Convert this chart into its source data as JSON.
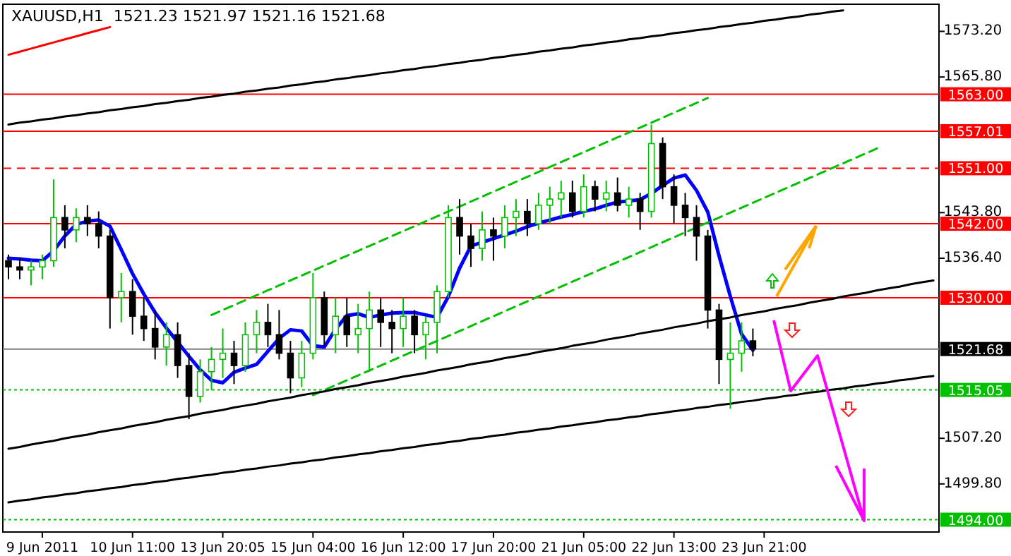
{
  "chart_data": {
    "type": "candlestick",
    "title": "XAUUSD,H1  1521.23 1521.97 1521.16 1521.68",
    "categories": [
      null,
      null,
      null,
      "9 Jun 2011",
      null,
      null,
      null,
      null,
      null,
      null,
      null,
      "10 Jun 11:00",
      null,
      null,
      null,
      null,
      null,
      null,
      null,
      "13 Jun 20:05",
      null,
      null,
      null,
      null,
      null,
      null,
      null,
      "15 Jun 04:00",
      null,
      null,
      null,
      null,
      null,
      null,
      null,
      "16 Jun 12:00",
      null,
      null,
      null,
      null,
      null,
      null,
      null,
      "17 Jun 20:00",
      null,
      null,
      null,
      null,
      null,
      null,
      null,
      "21 Jun 05:00",
      null,
      null,
      null,
      null,
      null,
      null,
      null,
      "22 Jun 13:00",
      null,
      null,
      null,
      null,
      null,
      null,
      null,
      "23 Jun 21:00",
      null,
      null,
      null,
      null,
      null,
      null,
      null,
      null,
      null,
      null,
      null,
      null,
      null,
      null,
      null
    ],
    "ohlc": [
      [
        1536,
        1537,
        1533,
        1535
      ],
      [
        1535,
        1536.5,
        1533,
        1534.5
      ],
      [
        1534.5,
        1536,
        1532,
        1535
      ],
      [
        1535,
        1537,
        1533,
        1536
      ],
      [
        1536,
        1549.2,
        1535,
        1543
      ],
      [
        1543,
        1545,
        1538,
        1541
      ],
      [
        1541,
        1544.5,
        1539,
        1543
      ],
      [
        1543,
        1545,
        1540,
        1542
      ],
      [
        1542,
        1544,
        1538,
        1540
      ],
      [
        1540,
        1541,
        1525,
        1530
      ],
      [
        1530,
        1534,
        1526,
        1531
      ],
      [
        1531,
        1533,
        1524,
        1527
      ],
      [
        1527,
        1530,
        1523,
        1525
      ],
      [
        1525,
        1528,
        1520,
        1522
      ],
      [
        1522,
        1526,
        1519,
        1524
      ],
      [
        1524,
        1526,
        1517,
        1519
      ],
      [
        1519,
        1521,
        1510.3,
        1514
      ],
      [
        1514,
        1520,
        1513,
        1518
      ],
      [
        1518,
        1522,
        1515,
        1520
      ],
      [
        1520,
        1525,
        1517,
        1521
      ],
      [
        1521,
        1523,
        1516,
        1519
      ],
      [
        1519,
        1526,
        1518,
        1524
      ],
      [
        1524,
        1528,
        1521,
        1526
      ],
      [
        1526,
        1529,
        1522,
        1524
      ],
      [
        1524,
        1528,
        1520,
        1521
      ],
      [
        1521,
        1523,
        1514.5,
        1517
      ],
      [
        1517,
        1523,
        1515.5,
        1521
      ],
      [
        1521,
        1534,
        1520,
        1530
      ],
      [
        1530,
        1531,
        1522,
        1524
      ],
      [
        1524,
        1530,
        1521,
        1527
      ],
      [
        1527,
        1530,
        1522,
        1524
      ],
      [
        1524,
        1529,
        1521,
        1525
      ],
      [
        1525,
        1531,
        1518,
        1528
      ],
      [
        1528,
        1530,
        1522,
        1526
      ],
      [
        1526,
        1528,
        1521,
        1525
      ],
      [
        1525,
        1530,
        1522,
        1527
      ],
      [
        1527,
        1528,
        1521,
        1524
      ],
      [
        1524,
        1527,
        1520,
        1526
      ],
      [
        1526,
        1532,
        1521,
        1531
      ],
      [
        1531,
        1545,
        1530,
        1543
      ],
      [
        1543,
        1546,
        1537,
        1540
      ],
      [
        1540,
        1542,
        1535,
        1538
      ],
      [
        1538,
        1544,
        1536,
        1541
      ],
      [
        1541,
        1543,
        1536,
        1540
      ],
      [
        1540,
        1545,
        1538,
        1543
      ],
      [
        1543,
        1546,
        1540,
        1544
      ],
      [
        1544,
        1546,
        1540,
        1542
      ],
      [
        1542,
        1547,
        1541,
        1545
      ],
      [
        1545,
        1548,
        1542,
        1546
      ],
      [
        1546,
        1549,
        1543,
        1547
      ],
      [
        1547,
        1549,
        1543,
        1544
      ],
      [
        1544,
        1550,
        1543,
        1548
      ],
      [
        1548,
        1549,
        1544,
        1546
      ],
      [
        1546,
        1549,
        1544,
        1547
      ],
      [
        1547,
        1549.5,
        1544,
        1545
      ],
      [
        1545,
        1548,
        1543,
        1546
      ],
      [
        1546,
        1547,
        1541,
        1544
      ],
      [
        1544,
        1558.1,
        1543,
        1555
      ],
      [
        1555,
        1556,
        1546,
        1548
      ],
      [
        1548,
        1550,
        1542,
        1545
      ],
      [
        1545,
        1547,
        1540,
        1543
      ],
      [
        1543,
        1545,
        1536,
        1540
      ],
      [
        1540,
        1541,
        1525,
        1528
      ],
      [
        1528,
        1529,
        1516,
        1520
      ],
      [
        1520,
        1526,
        1512,
        1521
      ],
      [
        1521,
        1526,
        1518,
        1523
      ],
      [
        1523,
        1525,
        1520.5,
        1521.68
      ],
      null,
      null,
      null,
      null,
      null,
      null,
      null,
      null,
      null,
      null,
      null,
      null,
      null,
      null,
      null,
      null
    ],
    "series": [
      {
        "type": "line",
        "color": "#0000ff",
        "values": [
          1536.4,
          1536.3,
          1536.1,
          1536,
          1537.6,
          1540,
          1541.9,
          1542.4,
          1542.6,
          1541.6,
          1537.8,
          1533.9,
          1530.6,
          1527.6,
          1525.1,
          1522.8,
          1520.5,
          1518.3,
          1516.6,
          1516.2,
          1517.9,
          1518.6,
          1519.2,
          1521.3,
          1523.4,
          1524.8,
          1524.6,
          1522.2,
          1522,
          1524.9,
          1527.1,
          1527.4,
          1526.8,
          1527.2,
          1527.5,
          1527.6,
          1527.6,
          1527.2,
          1526.8,
          1530.2,
          1534.8,
          1538.4,
          1539,
          1539.6,
          1540.2,
          1540.8,
          1541.5,
          1542.1,
          1542.6,
          1543.1,
          1543.5,
          1544,
          1544.4,
          1545,
          1545.5,
          1545.7,
          1545.9,
          1546.9,
          1548.2,
          1549.4,
          1549.9,
          1547.4,
          1543.9,
          1536.8,
          1530.2,
          1524.1,
          1521.5,
          null,
          null,
          null,
          null,
          null,
          null,
          null,
          null,
          null,
          null,
          null,
          null,
          null,
          null,
          null,
          null
        ]
      },
      {
        "type": "line",
        "color": "#00c000",
        "line_style": "dashed",
        "values": [
          null,
          null,
          null,
          null,
          null,
          null,
          null,
          null,
          null,
          null,
          null,
          null,
          null,
          null,
          null,
          null,
          null,
          null,
          1527.2,
          1528,
          1528.8,
          1529.6,
          1530.4,
          1531.2,
          1532,
          1532.8,
          1533.6,
          1534.4,
          1535.2,
          1536,
          1536.8,
          1537.6,
          1538.4,
          1539.2,
          1540,
          1540.8,
          1541.6,
          1542.4,
          1543.2,
          1544,
          1544.8,
          1545.6,
          1546.4,
          1547.2,
          1548,
          1548.8,
          1549.6,
          1550.4,
          1551.2,
          1552,
          1552.8,
          1553.6,
          1554.4,
          1555.2,
          1556,
          1556.8,
          1557.6,
          1558.4,
          1559.2,
          1560,
          1560.8,
          1561.6,
          1562.4,
          null,
          null,
          null,
          null,
          null,
          null,
          null,
          null,
          null,
          null,
          null,
          null,
          null,
          null,
          null,
          null,
          null,
          null,
          null,
          null
        ]
      },
      {
        "type": "line",
        "color": "#00c000",
        "line_style": "dashed",
        "values": [
          null,
          null,
          null,
          null,
          null,
          null,
          null,
          null,
          null,
          null,
          null,
          null,
          null,
          null,
          null,
          null,
          null,
          null,
          null,
          null,
          null,
          null,
          null,
          null,
          null,
          null,
          null,
          1514.2,
          1515,
          1515.8,
          1516.6,
          1517.4,
          1518.2,
          1519,
          1519.8,
          1520.6,
          1521.4,
          1522.2,
          1523,
          1523.8,
          1524.6,
          1525.4,
          1526.2,
          1527,
          1527.8,
          1528.6,
          1529.4,
          1530.2,
          1531,
          1531.8,
          1532.6,
          1533.4,
          1534.2,
          1535,
          1535.8,
          1536.6,
          1537.4,
          1538.2,
          1539,
          1539.8,
          1540.6,
          1541.4,
          1542.2,
          1543,
          1543.8,
          1544.6,
          1545.4,
          1546.2,
          1547,
          1547.8,
          1548.6,
          1549.4,
          1550.2,
          1551,
          1551.8,
          1552.6,
          1553.4,
          1554.2,
          null,
          null,
          null,
          null,
          null
        ]
      },
      {
        "type": "line",
        "color": "#000000",
        "values": [
          1505.5,
          1505.8,
          1506.2,
          1506.5,
          1506.8,
          1507.2,
          1507.5,
          1507.8,
          1508.2,
          1508.5,
          1508.8,
          1509.2,
          1509.5,
          1509.8,
          1510.2,
          1510.5,
          1510.8,
          1511.2,
          1511.5,
          1511.8,
          1512.2,
          1512.5,
          1512.8,
          1513.2,
          1513.5,
          1513.8,
          1514.2,
          1514.5,
          1514.8,
          1515.2,
          1515.5,
          1515.8,
          1516.2,
          1516.5,
          1516.8,
          1517.2,
          1517.5,
          1517.8,
          1518.2,
          1518.5,
          1518.8,
          1519.2,
          1519.5,
          1519.8,
          1520.2,
          1520.5,
          1520.8,
          1521.2,
          1521.5,
          1521.8,
          1522.2,
          1522.5,
          1522.8,
          1523.2,
          1523.5,
          1523.8,
          1524.2,
          1524.5,
          1524.8,
          1525.2,
          1525.5,
          1525.8,
          1526.2,
          1526.5,
          1526.8,
          1527.2,
          1527.5,
          1527.8,
          1528.2,
          1528.5,
          1528.8,
          1529.2,
          1529.5,
          1529.8,
          1530.2,
          1530.5,
          1530.8,
          1531.2,
          1531.5,
          1531.8,
          1532.2,
          1532.5,
          1532.8
        ]
      },
      {
        "type": "line",
        "color": "#000000",
        "values": [
          1558.1,
          1558.4,
          1558.6,
          1558.9,
          1559.1,
          1559.4,
          1559.6,
          1559.9,
          1560.1,
          1560.4,
          1560.6,
          1560.9,
          1561.1,
          1561.4,
          1561.6,
          1561.9,
          1562.1,
          1562.4,
          1562.6,
          1562.9,
          1563.1,
          1563.4,
          1563.6,
          1563.9,
          1564.1,
          1564.4,
          1564.6,
          1564.9,
          1565.1,
          1565.4,
          1565.6,
          1565.9,
          1566.1,
          1566.4,
          1566.6,
          1566.9,
          1567.1,
          1567.4,
          1567.6,
          1567.9,
          1568.1,
          1568.4,
          1568.6,
          1568.9,
          1569.1,
          1569.4,
          1569.6,
          1569.9,
          1570.1,
          1570.4,
          1570.6,
          1570.9,
          1571.1,
          1571.4,
          1571.6,
          1571.9,
          1572.1,
          1572.4,
          1572.6,
          1572.9,
          1573.1,
          1573.4,
          1573.6,
          1573.9,
          1574.1,
          1574.4,
          1574.6,
          1574.9,
          1575.1,
          1575.4,
          1575.6,
          1575.9,
          1576.1,
          1576.4,
          1576.6,
          null,
          null,
          null,
          null,
          null,
          null,
          null,
          null
        ]
      },
      {
        "type": "line",
        "color": "#000000",
        "values": [
          1496.8,
          1497.1,
          1497.3,
          1497.6,
          1497.8,
          1498.1,
          1498.3,
          1498.6,
          1498.8,
          1499.1,
          1499.3,
          1499.6,
          1499.8,
          1500.1,
          1500.3,
          1500.6,
          1500.8,
          1501.1,
          1501.3,
          1501.6,
          1501.8,
          1502.1,
          1502.3,
          1502.6,
          1502.8,
          1503.1,
          1503.3,
          1503.6,
          1503.8,
          1504.1,
          1504.3,
          1504.6,
          1504.8,
          1505.1,
          1505.3,
          1505.6,
          1505.8,
          1506.1,
          1506.3,
          1506.6,
          1506.8,
          1507.1,
          1507.3,
          1507.6,
          1507.8,
          1508.1,
          1508.3,
          1508.6,
          1508.8,
          1509.1,
          1509.3,
          1509.6,
          1509.8,
          1510.1,
          1510.3,
          1510.6,
          1510.8,
          1511.1,
          1511.3,
          1511.6,
          1511.8,
          1512.1,
          1512.3,
          1512.6,
          1512.8,
          1513.1,
          1513.3,
          1513.6,
          1513.8,
          1514.1,
          1514.3,
          1514.6,
          1514.8,
          1515.1,
          1515.3,
          1515.6,
          1515.8,
          1516.1,
          1516.3,
          1516.6,
          1516.8,
          1517.1,
          1517.3
        ]
      },
      {
        "type": "line",
        "color": "#ff0000",
        "values": [
          1569.4,
          1569.9,
          1570.4,
          1570.9,
          1571.4,
          1571.9,
          1572.4,
          1572.9,
          1573.4,
          1573.9,
          null,
          null,
          null,
          null,
          null,
          null,
          null,
          null,
          null,
          null,
          null,
          null,
          null,
          null,
          null,
          null,
          null,
          null,
          null,
          null,
          null,
          null,
          null,
          null,
          null,
          null,
          null,
          null,
          null,
          null,
          null,
          null,
          null,
          null,
          null,
          null,
          null,
          null,
          null,
          null,
          null,
          null,
          null,
          null,
          null,
          null,
          null,
          null,
          null,
          null,
          null,
          null,
          null,
          null,
          null,
          null,
          null,
          null,
          null,
          null,
          null,
          null,
          null,
          null,
          null,
          null,
          null,
          null,
          null,
          null,
          null,
          null,
          null
        ]
      }
    ],
    "ref_lines": [
      {
        "axis": "y",
        "value": 1563,
        "label": "1563.00",
        "color": "#ff0000"
      },
      {
        "axis": "y",
        "value": 1557.01,
        "label": "1557.01",
        "color": "#ff0000"
      },
      {
        "axis": "y",
        "value": 1551,
        "label": "1551.00",
        "color": "#ff0000",
        "line_style": "dashed"
      },
      {
        "axis": "y",
        "value": 1542,
        "label": "1542.00",
        "color": "#ff0000"
      },
      {
        "axis": "y",
        "value": 1530,
        "label": "1530.00",
        "color": "#ff0000"
      },
      {
        "axis": "y",
        "value": 1521.68,
        "label": "1521.68",
        "color": "#808080"
      },
      {
        "axis": "y",
        "value": 1515.05,
        "label": "1515.05",
        "color": "#00c000",
        "line_style": "dotted"
      },
      {
        "axis": "y",
        "value": 1494,
        "label": "1494.00",
        "color": "#00c000",
        "line_style": "dotted"
      }
    ],
    "ylim": [
      1492,
      1577.6
    ],
    "yticks": [
      {
        "value": 1573.2,
        "label": "1573.20"
      },
      {
        "value": 1565.8,
        "label": "1565.80"
      },
      {
        "value": 1543.8,
        "label": "1543.80"
      },
      {
        "value": 1536.4,
        "label": "1536.40"
      },
      {
        "value": 1507.2,
        "label": "1507.20"
      },
      {
        "value": 1499.8,
        "label": "1499.80"
      }
    ],
    "grid": false
  }
}
